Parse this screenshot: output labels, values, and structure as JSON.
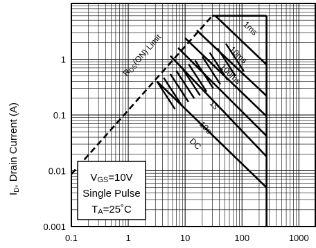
{
  "chart_data": {
    "type": "line",
    "title": "",
    "xlabel": "",
    "ylabel_main": "I",
    "ylabel_sub": "D",
    "ylabel_rest": ", Drain Current (A)",
    "x_scale": "log",
    "y_scale": "log",
    "xlim": [
      0.1,
      2000
    ],
    "ylim": [
      0.001,
      10
    ],
    "grid": true,
    "x_ticks": [
      {
        "value": 0.1,
        "label": "0.1"
      },
      {
        "value": 1,
        "label": "1"
      },
      {
        "value": 10,
        "label": "10"
      },
      {
        "value": 100,
        "label": "100"
      },
      {
        "value": 1000,
        "label": "1000"
      }
    ],
    "y_ticks": [
      {
        "value": 0.001,
        "label": "0.001"
      },
      {
        "value": 0.01,
        "label": "0.01"
      },
      {
        "value": 0.1,
        "label": "0.1"
      },
      {
        "value": 1,
        "label": "1"
      }
    ],
    "rds_limit": {
      "label_main": "R",
      "label_sub": "DS",
      "label_rest": "(ON) Limit",
      "points": [
        [
          0.1,
          0.0087
        ],
        [
          30,
          6.0
        ]
      ],
      "label_at": [
        1.9,
        1.1
      ]
    },
    "current_limit": {
      "points": [
        [
          30,
          6.0
        ],
        [
          270,
          6.0
        ]
      ]
    },
    "dc_limit": {
      "points": [
        [
          270,
          6.0
        ],
        [
          270,
          0.001
        ]
      ]
    },
    "soa_curves": [
      {
        "name": "1ms",
        "points": [
          [
            34,
            6.0
          ],
          [
            270,
            0.8
          ]
        ],
        "label_at": [
          130,
          3.3
        ]
      },
      {
        "name": "10ms",
        "points": [
          [
            16,
            3.3
          ],
          [
            270,
            0.22
          ]
        ],
        "label_at": [
          80,
          1.1
        ]
      },
      {
        "name": "100ms",
        "points": [
          [
            10,
            2.4
          ],
          [
            270,
            0.095
          ]
        ],
        "label_at": [
          58,
          0.5
        ]
      },
      {
        "name": "1s",
        "points": [
          [
            7.5,
            1.6
          ],
          [
            270,
            0.042
          ]
        ],
        "label_at": [
          30,
          0.14
        ]
      },
      {
        "name": "10s",
        "points": [
          [
            5.5,
            1.15
          ],
          [
            270,
            0.018
          ]
        ],
        "label_at": [
          21,
          0.055
        ]
      },
      {
        "name": "DC",
        "points": [
          [
            3.2,
            0.4
          ],
          [
            270,
            0.005
          ]
        ],
        "label_at": [
          14,
          0.028
        ]
      }
    ],
    "conditions": {
      "vgs_main": "V",
      "vgs_sub": "GS",
      "vgs_rest": "=10V",
      "pulse": "Single Pulse",
      "ta_main": "T",
      "ta_sub": "A",
      "ta_rest": "=25˚C"
    }
  }
}
